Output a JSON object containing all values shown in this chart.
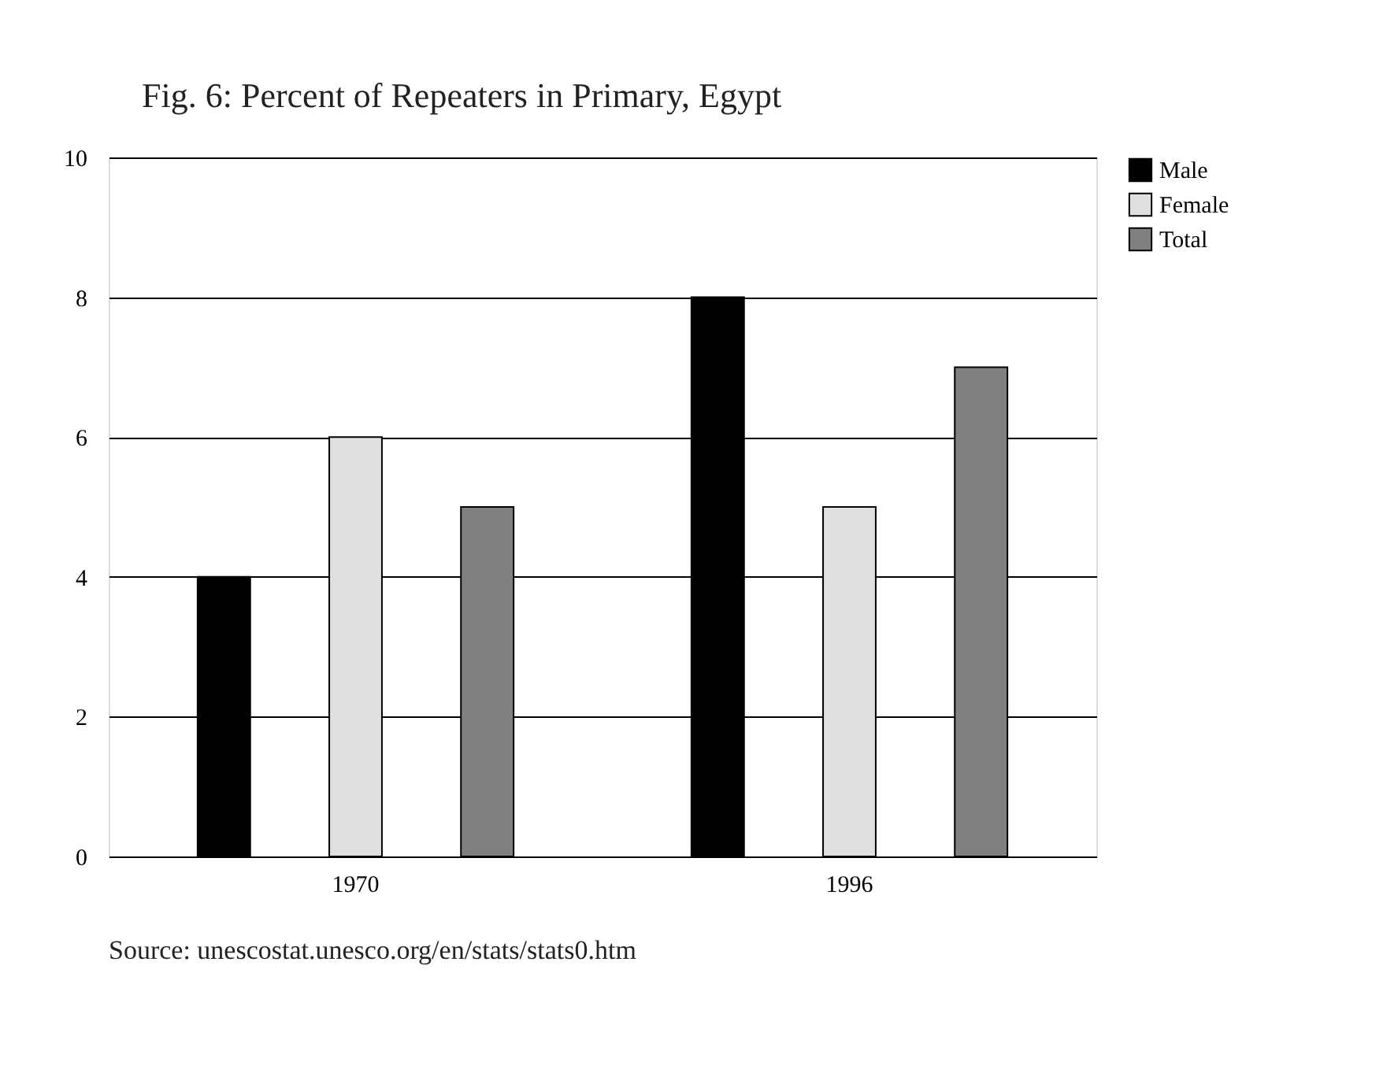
{
  "chart_data": {
    "type": "bar",
    "title": "Fig. 6: Percent of Repeaters in Primary, Egypt",
    "categories": [
      "1970",
      "1996"
    ],
    "series": [
      {
        "name": "Male",
        "color": "#000000",
        "values": [
          4,
          8
        ]
      },
      {
        "name": "Female",
        "color": "#e0e0e0",
        "values": [
          6,
          5
        ]
      },
      {
        "name": "Total",
        "color": "#808080",
        "values": [
          5,
          7
        ]
      }
    ],
    "ylim": [
      0,
      10
    ],
    "yticks": [
      0,
      2,
      4,
      6,
      8,
      10
    ],
    "grid": "y",
    "legend": "right",
    "annotations": [
      "Source:  unescostat.unesco.org/en/stats/stats0.htm"
    ]
  }
}
